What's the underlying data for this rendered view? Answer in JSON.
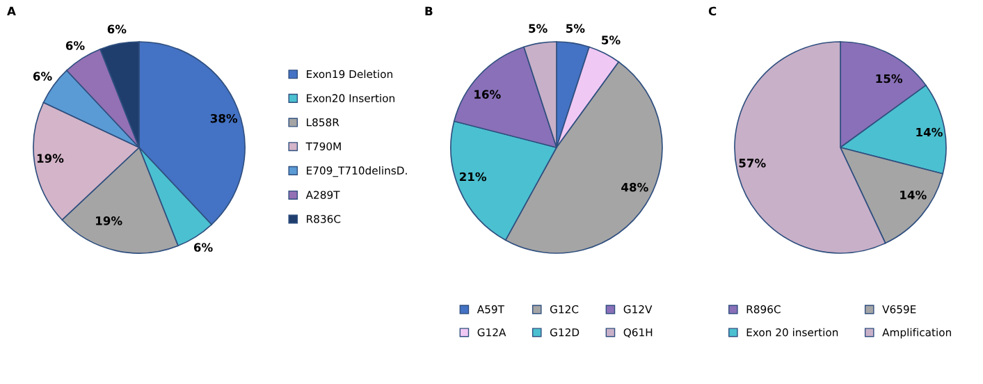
{
  "chart_data": [
    {
      "type": "pie",
      "title": "A",
      "legend": "right",
      "categories": [
        "Exon19 Deletion",
        "Exon20 Insertion",
        "L858R",
        "T790M",
        "E709_T710delinsD.",
        "A289T",
        "R836C"
      ],
      "values": [
        38,
        6,
        19,
        19,
        6,
        6,
        6
      ],
      "value_labels": [
        "38%",
        "6%",
        "19%",
        "19%",
        "6%",
        "6%",
        "6%"
      ],
      "colors": [
        "#4472c4",
        "#4bc0d0",
        "#a5a5a5",
        "#d4b4c8",
        "#5a9bd5",
        "#9470b4",
        "#1f3e6e"
      ]
    },
    {
      "type": "pie",
      "title": "B",
      "legend": "bottom",
      "categories": [
        "A59T",
        "G12A",
        "G12C",
        "G12D",
        "G12V",
        "Q61H"
      ],
      "values": [
        5,
        5,
        48,
        21,
        16,
        5
      ],
      "value_labels": [
        "5%",
        "5%",
        "48%",
        "21%",
        "16%",
        "5%"
      ],
      "colors": [
        "#4472c4",
        "#f0c8f4",
        "#a5a5a5",
        "#4bc0d0",
        "#8a70b8",
        "#c8b0c8"
      ]
    },
    {
      "type": "pie",
      "title": "C",
      "legend": "bottom",
      "categories": [
        "R896C",
        "Exon 20 insertion",
        "V659E",
        "Amplification"
      ],
      "values": [
        15,
        14,
        14,
        57
      ],
      "value_labels": [
        "15%",
        "14%",
        "14%",
        "57%"
      ],
      "colors": [
        "#8a70b8",
        "#4bc0d0",
        "#a5a5a5",
        "#c8b0c8"
      ]
    }
  ]
}
